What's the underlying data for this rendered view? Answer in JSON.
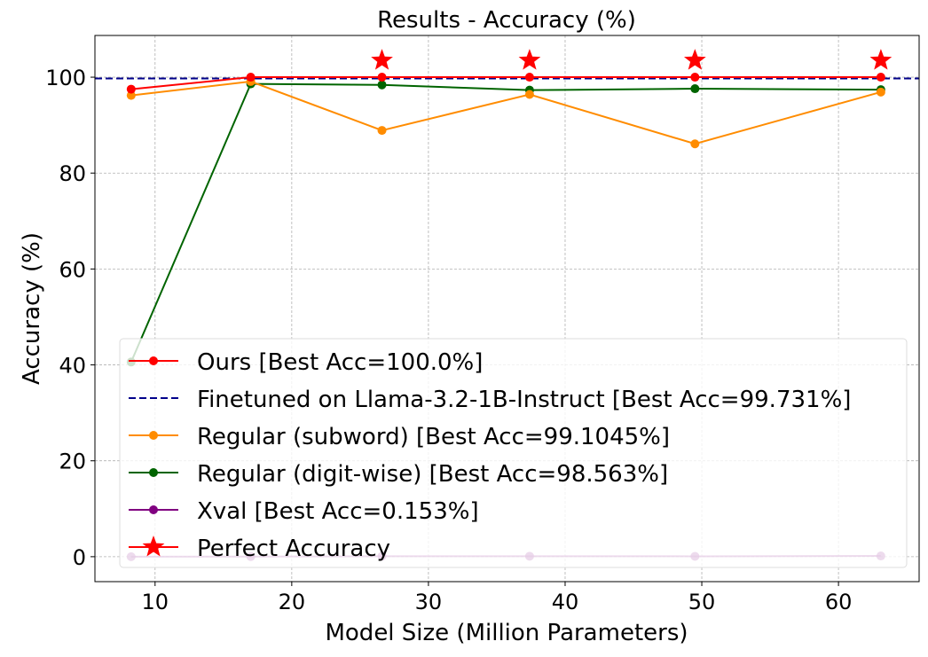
{
  "chart_data": {
    "type": "line",
    "title": "Results - Accuracy (%)",
    "xlabel": "Model Size (Million Parameters)",
    "ylabel": "Accuracy (%)",
    "xlim": [
      5.6,
      65.9
    ],
    "ylim": [
      -5.2,
      108.7
    ],
    "xticks": [
      10,
      20,
      30,
      40,
      50,
      60
    ],
    "yticks": [
      0,
      20,
      40,
      60,
      80,
      100
    ],
    "grid": true,
    "legend_position": "lower-left",
    "x": [
      8.25,
      17.0,
      26.6,
      37.4,
      49.5,
      63.1
    ],
    "series": [
      {
        "name": "Ours [Best Acc=100.0%]",
        "color": "#ff0000",
        "style": "line-marker",
        "values": [
          97.5,
          100,
          100,
          100,
          100,
          100
        ]
      },
      {
        "name": "Finetuned on Llama-3.2-1B-Instruct [Best Acc=99.731%]",
        "color": "#00008b",
        "style": "dashed-hline",
        "value": 99.731
      },
      {
        "name": "Regular (subword) [Best Acc=99.1045%]",
        "color": "#ff8c00",
        "style": "line-marker",
        "values": [
          96.2,
          99.1,
          88.9,
          96.4,
          86.1,
          96.9
        ]
      },
      {
        "name": "Regular (digit-wise) [Best Acc=98.563%]",
        "color": "#006400",
        "style": "line-marker",
        "values": [
          40.6,
          98.6,
          98.4,
          97.3,
          97.6,
          97.4
        ]
      },
      {
        "name": "Xval [Best Acc=0.153%]",
        "color": "#800080",
        "style": "line-marker",
        "values": [
          0.0,
          0.02,
          0.1,
          0.1,
          0.08,
          0.153
        ]
      },
      {
        "name": "Perfect Accuracy",
        "color": "#ff0000",
        "style": "star",
        "x": [
          26.6,
          37.4,
          49.5,
          63.1
        ],
        "values": [
          103.5,
          103.5,
          103.5,
          103.5
        ]
      }
    ]
  }
}
